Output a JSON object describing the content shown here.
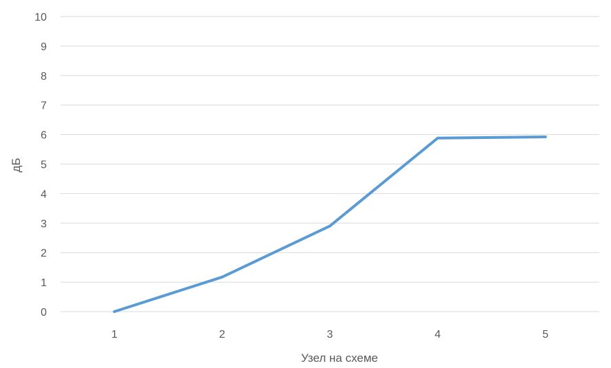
{
  "chart_data": {
    "type": "line",
    "title": "",
    "xlabel": "Узел на схеме",
    "ylabel": "дБ",
    "categories": [
      "1",
      "2",
      "3",
      "4",
      "5"
    ],
    "series": [
      {
        "values": [
          0,
          1.17,
          2.9,
          5.88,
          5.92
        ]
      }
    ],
    "ylim": [
      0,
      10
    ],
    "yticks": [
      0,
      1,
      2,
      3,
      4,
      5,
      6,
      7,
      8,
      9,
      10
    ],
    "grid": true,
    "legend": "none",
    "colors": {
      "series": "#5b9bd5",
      "grid": "#d9d9d9",
      "text": "#595959"
    }
  }
}
